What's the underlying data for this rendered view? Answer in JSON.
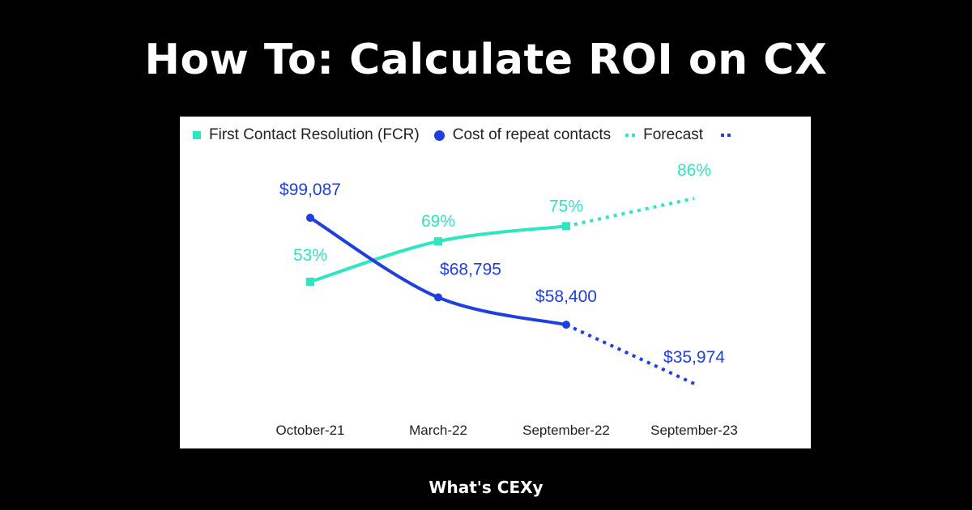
{
  "title": "How To: Calculate ROI on CX",
  "footer": "What's CEXy",
  "colors": {
    "fcr": "#2ee6bf",
    "cost": "#1f3fe0"
  },
  "chart_data": {
    "type": "line",
    "categories": [
      "October-21",
      "March-22",
      "September-22",
      "September-23"
    ],
    "legend": {
      "position": "top-left",
      "entries": [
        "First Contact Resolution (FCR)",
        "Cost of repeat contacts",
        "Forecast"
      ]
    },
    "series": [
      {
        "name": "First Contact Resolution (FCR)",
        "values": [
          53,
          69,
          75,
          86
        ],
        "labels": [
          "53%",
          "69%",
          "75%",
          "86%"
        ],
        "forecast_from_index": 2,
        "marker": "square"
      },
      {
        "name": "Cost of repeat contacts",
        "values": [
          99087,
          68795,
          58400,
          35974
        ],
        "labels": [
          "$99,087",
          "$68,795",
          "$58,400",
          "$35,974"
        ],
        "forecast_from_index": 2,
        "marker": "circle"
      }
    ],
    "grid": false,
    "yaxis_visible": false
  }
}
